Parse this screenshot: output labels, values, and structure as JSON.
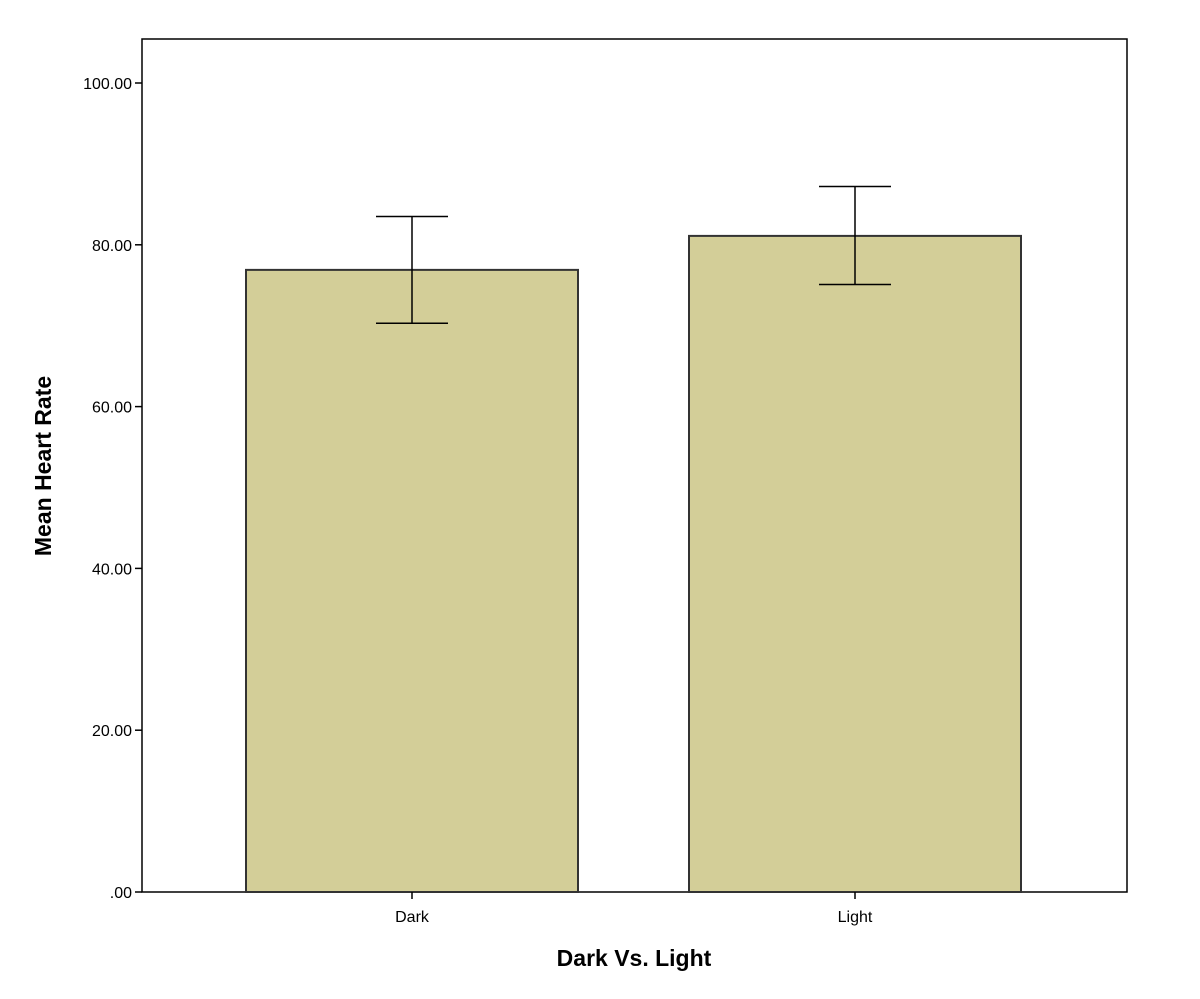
{
  "chart_data": {
    "type": "bar",
    "categories": [
      "Dark",
      "Light"
    ],
    "values": [
      76.9,
      81.1
    ],
    "error_bars": {
      "lower": [
        70.3,
        75.1
      ],
      "upper": [
        83.5,
        87.2
      ]
    },
    "xlabel": "Dark Vs. Light",
    "ylabel": "Mean Heart Rate",
    "ylim": [
      0,
      100
    ],
    "yticks": [
      0,
      20,
      40,
      60,
      80,
      100
    ],
    "ytick_labels": [
      ".00",
      "20.00",
      "40.00",
      "60.00",
      "80.00",
      "100.00"
    ],
    "grid": false,
    "colors": {
      "bar_fill": "#d3ce98",
      "bar_stroke": "#333333",
      "error_bar": "#000000",
      "frame": "#000000"
    }
  }
}
